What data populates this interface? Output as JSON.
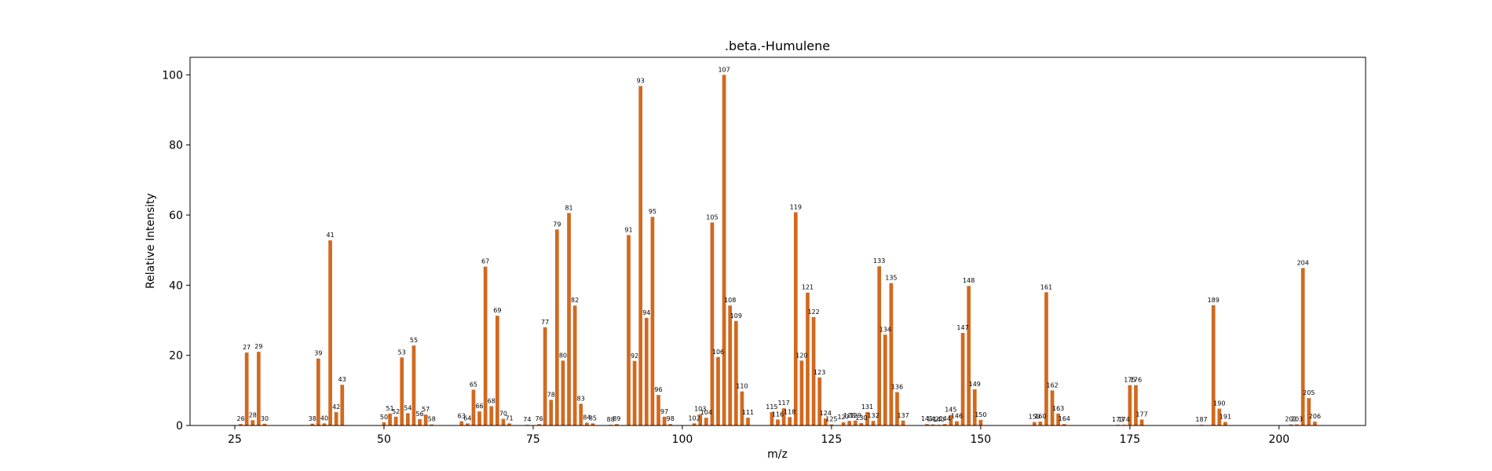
{
  "chart_data": {
    "type": "bar",
    "title": ".beta.-Humulene",
    "xlabel": "m/z",
    "ylabel": "Relative Intensity",
    "xlim": [
      17.5,
      214.5
    ],
    "ylim": [
      0,
      105
    ],
    "xticks": [
      25,
      50,
      75,
      100,
      125,
      150,
      175,
      200
    ],
    "yticks": [
      0,
      20,
      40,
      60,
      80,
      100
    ],
    "bar_color": "#d2691e",
    "grid": false,
    "x": [
      26,
      27,
      28,
      29,
      30,
      38,
      39,
      40,
      41,
      42,
      43,
      50,
      51,
      52,
      53,
      54,
      55,
      56,
      57,
      58,
      63,
      64,
      65,
      66,
      67,
      68,
      69,
      70,
      71,
      74,
      76,
      77,
      78,
      79,
      80,
      81,
      82,
      83,
      84,
      85,
      88,
      89,
      91,
      92,
      93,
      94,
      95,
      96,
      97,
      98,
      102,
      103,
      104,
      105,
      106,
      107,
      108,
      109,
      110,
      111,
      115,
      116,
      117,
      118,
      119,
      120,
      121,
      122,
      123,
      124,
      125,
      127,
      128,
      129,
      130,
      131,
      132,
      133,
      134,
      135,
      136,
      137,
      141,
      142,
      143,
      144,
      145,
      146,
      147,
      148,
      149,
      150,
      159,
      160,
      161,
      162,
      163,
      164,
      173,
      174,
      175,
      176,
      177,
      187,
      189,
      190,
      191,
      202,
      203,
      204,
      205,
      206
    ],
    "values": [
      0.4,
      20.8,
      1.5,
      21.0,
      0.5,
      0.5,
      19.1,
      0.6,
      52.8,
      3.8,
      11.6,
      0.9,
      3.4,
      2.5,
      19.4,
      3.5,
      22.8,
      1.8,
      3.1,
      0.3,
      1.2,
      0.6,
      10.2,
      4.0,
      45.3,
      5.5,
      31.3,
      1.9,
      0.6,
      0.2,
      0.4,
      28.0,
      7.3,
      55.9,
      18.5,
      60.6,
      34.2,
      6.2,
      0.8,
      0.6,
      0.2,
      0.4,
      54.3,
      18.4,
      96.8,
      30.7,
      59.5,
      8.7,
      2.5,
      0.4,
      0.6,
      3.2,
      2.2,
      57.9,
      19.5,
      100,
      34.2,
      29.8,
      9.7,
      2.2,
      3.8,
      1.7,
      4.9,
      2.4,
      60.8,
      18.5,
      37.9,
      30.9,
      13.7,
      2.0,
      0.3,
      0.9,
      1.3,
      1.4,
      0.7,
      3.8,
      1.3,
      45.4,
      25.9,
      40.6,
      9.5,
      1.4,
      0.4,
      0.3,
      0.2,
      0.4,
      3.0,
      1.2,
      26.4,
      39.8,
      10.3,
      1.6,
      1.0,
      1.1,
      38.0,
      10.0,
      3.4,
      0.4,
      0.2,
      0.2,
      11.5,
      11.5,
      1.7,
      0.2,
      34.3,
      4.8,
      1.0,
      0.3,
      0.3,
      44.9,
      7.8,
      1.1
    ]
  }
}
